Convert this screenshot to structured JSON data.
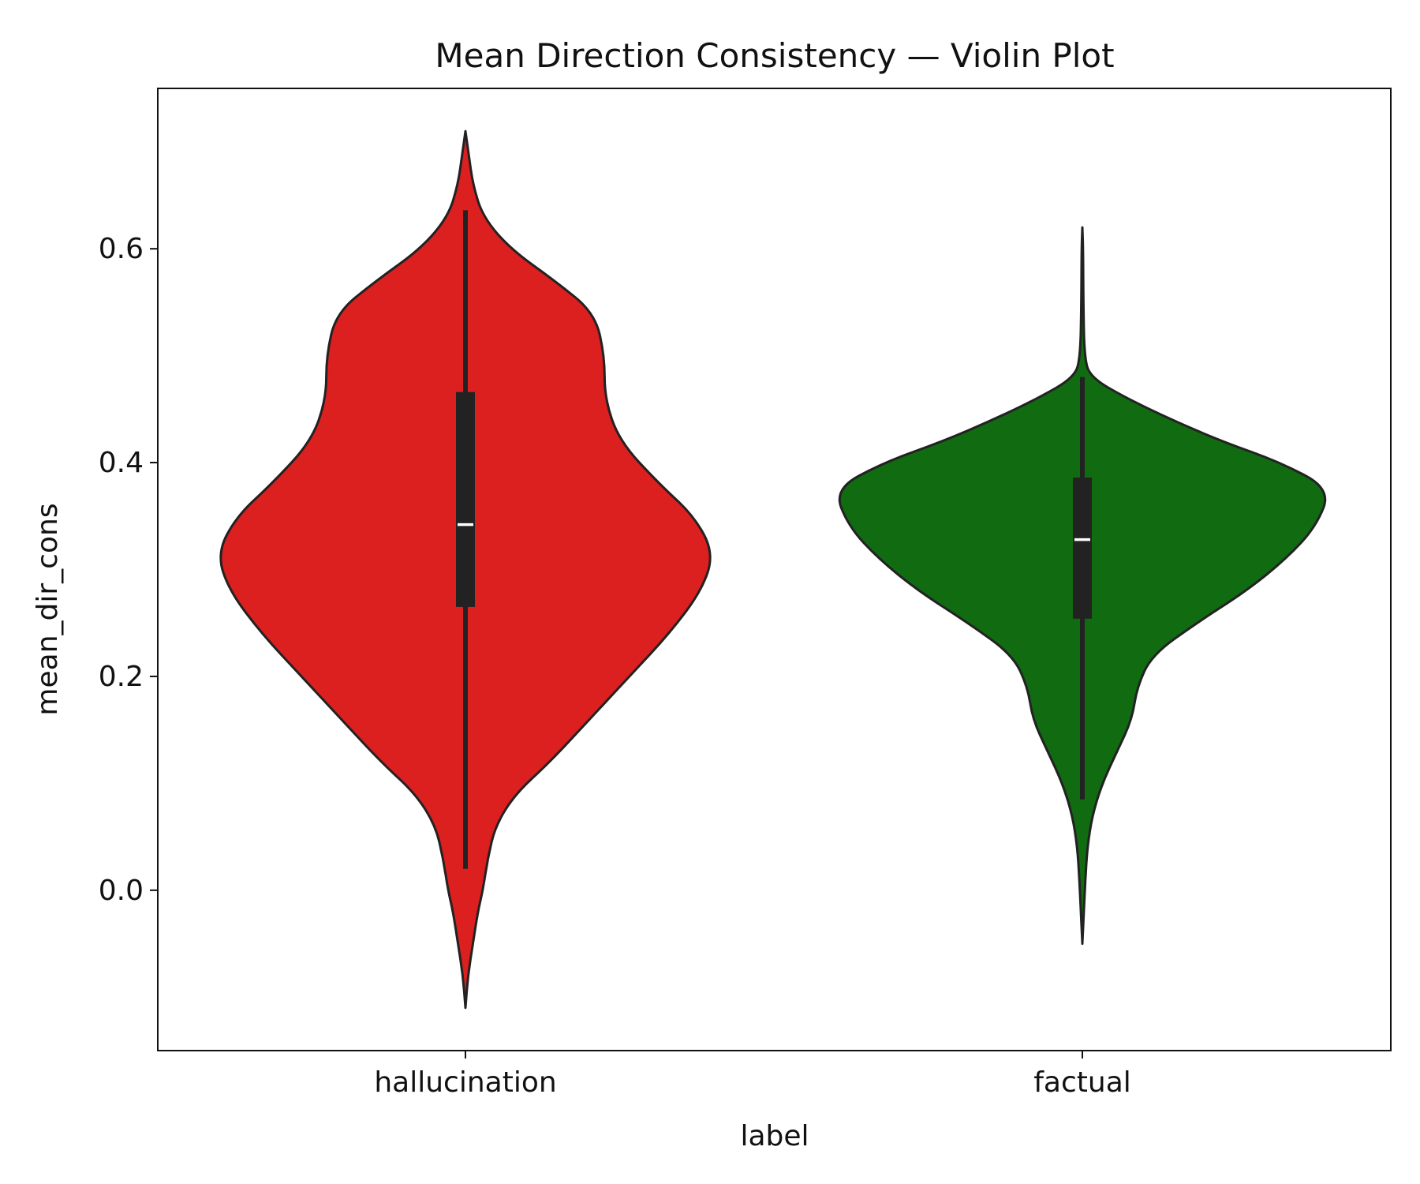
{
  "chart_data": {
    "type": "violin",
    "title": "Mean Direction Consistency — Violin Plot",
    "xlabel": "label",
    "ylabel": "mean_dir_cons",
    "categories": [
      "hallucination",
      "factual"
    ],
    "ylim": [
      -0.15,
      0.75
    ],
    "yticks": [
      0.0,
      0.2,
      0.4,
      0.6
    ],
    "ytick_labels": [
      "0.0",
      "0.2",
      "0.4",
      "0.6"
    ],
    "grid": false,
    "legend": "none",
    "colors": {
      "hallucination": "#dc2020",
      "factual": "#116b11",
      "outline": "#222222",
      "median": "#ffffff"
    },
    "series": [
      {
        "category": "hallucination",
        "min": 0.02,
        "q1": 0.265,
        "median": 0.342,
        "q3": 0.466,
        "max": 0.636,
        "kde_min": -0.11,
        "kde_max": 0.71,
        "density_profile": [
          {
            "y": -0.11,
            "width": 0.0
          },
          {
            "y": -0.08,
            "width": 0.01
          },
          {
            "y": -0.05,
            "width": 0.03
          },
          {
            "y": -0.02,
            "width": 0.05
          },
          {
            "y": 0.0,
            "width": 0.07
          },
          {
            "y": 0.03,
            "width": 0.09
          },
          {
            "y": 0.06,
            "width": 0.12
          },
          {
            "y": 0.09,
            "width": 0.2
          },
          {
            "y": 0.12,
            "width": 0.34
          },
          {
            "y": 0.16,
            "width": 0.5
          },
          {
            "y": 0.2,
            "width": 0.66
          },
          {
            "y": 0.24,
            "width": 0.82
          },
          {
            "y": 0.28,
            "width": 0.95
          },
          {
            "y": 0.315,
            "width": 1.0
          },
          {
            "y": 0.35,
            "width": 0.92
          },
          {
            "y": 0.38,
            "width": 0.78
          },
          {
            "y": 0.42,
            "width": 0.62
          },
          {
            "y": 0.46,
            "width": 0.56
          },
          {
            "y": 0.5,
            "width": 0.56
          },
          {
            "y": 0.54,
            "width": 0.52
          },
          {
            "y": 0.57,
            "width": 0.36
          },
          {
            "y": 0.6,
            "width": 0.18
          },
          {
            "y": 0.63,
            "width": 0.07
          },
          {
            "y": 0.66,
            "width": 0.03
          },
          {
            "y": 0.69,
            "width": 0.012
          },
          {
            "y": 0.71,
            "width": 0.0
          }
        ]
      },
      {
        "category": "factual",
        "min": 0.085,
        "q1": 0.254,
        "median": 0.328,
        "q3": 0.386,
        "max": 0.48,
        "kde_min": -0.05,
        "kde_max": 0.62,
        "density_profile": [
          {
            "y": -0.05,
            "width": 0.0
          },
          {
            "y": -0.02,
            "width": 0.006
          },
          {
            "y": 0.01,
            "width": 0.012
          },
          {
            "y": 0.04,
            "width": 0.02
          },
          {
            "y": 0.07,
            "width": 0.04
          },
          {
            "y": 0.1,
            "width": 0.08
          },
          {
            "y": 0.13,
            "width": 0.14
          },
          {
            "y": 0.16,
            "width": 0.2
          },
          {
            "y": 0.19,
            "width": 0.22
          },
          {
            "y": 0.22,
            "width": 0.28
          },
          {
            "y": 0.25,
            "width": 0.46
          },
          {
            "y": 0.28,
            "width": 0.66
          },
          {
            "y": 0.31,
            "width": 0.82
          },
          {
            "y": 0.34,
            "width": 0.94
          },
          {
            "y": 0.375,
            "width": 1.0
          },
          {
            "y": 0.4,
            "width": 0.8
          },
          {
            "y": 0.42,
            "width": 0.56
          },
          {
            "y": 0.44,
            "width": 0.36
          },
          {
            "y": 0.46,
            "width": 0.18
          },
          {
            "y": 0.48,
            "width": 0.03
          },
          {
            "y": 0.5,
            "width": 0.008
          },
          {
            "y": 0.55,
            "width": 0.004
          },
          {
            "y": 0.6,
            "width": 0.003
          },
          {
            "y": 0.62,
            "width": 0.0
          }
        ]
      }
    ]
  }
}
